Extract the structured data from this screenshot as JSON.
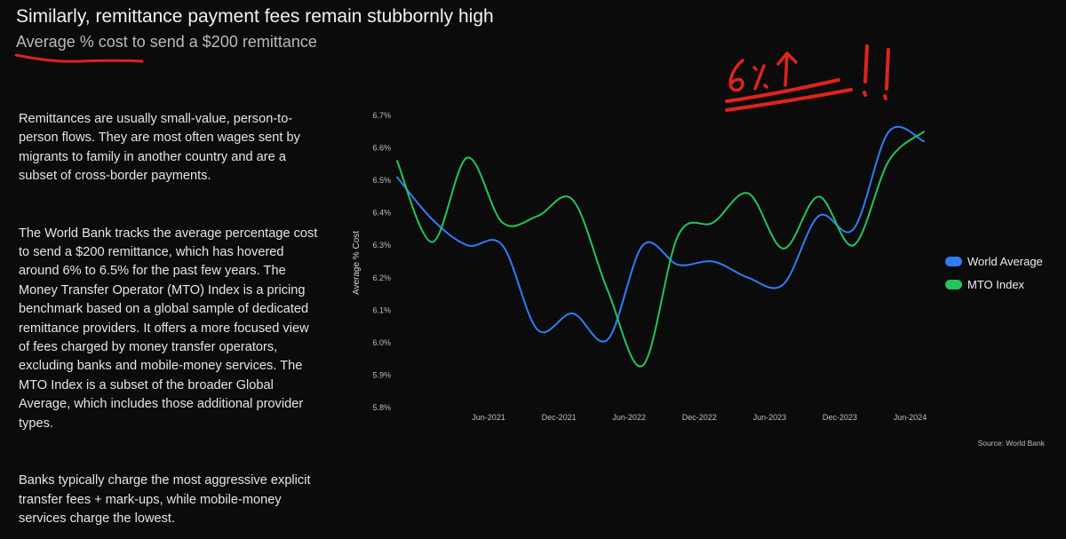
{
  "header": {
    "title": "Similarly, remittance payment fees remain stubbornly high",
    "subtitle": "Average % cost to send a $200 remittance"
  },
  "body": {
    "paragraphs": [
      "Remittances are usually small-value, person-to-person flows. They are most often wages sent by migrants to family in another country and are a subset of cross-border payments.",
      "The World Bank tracks the average percentage cost to send a $200 remittance, which has hovered around 6% to 6.5% for the past few years. The Money Transfer Operator (MTO) Index is a pricing benchmark based on a global sample of dedicated remittance providers. It offers a more focused view of fees charged by money transfer operators, excluding banks and mobile-money services. The MTO Index is a subset of the broader Global Average, which includes those additional provider types.",
      "Banks typically charge the most aggressive explicit transfer fees + mark-ups, while mobile-money services charge the lowest."
    ]
  },
  "annotation": {
    "handwritten_text": "6%↑ !!"
  },
  "source": "Source: World Bank",
  "colors": {
    "world_average": "#2f7df6",
    "mto_index": "#22c55e",
    "annotation": "#e0231c"
  },
  "chart_data": {
    "type": "line",
    "title": "",
    "xlabel": "",
    "ylabel": "Average % Cost",
    "ylim": [
      5.8,
      6.7
    ],
    "yticks": [
      "6.7%",
      "6.6%",
      "6.5%",
      "6.4%",
      "6.3%",
      "6.2%",
      "6.1%",
      "6.0%",
      "5.9%",
      "5.8%"
    ],
    "xtick_labels": [
      "Jun-2021",
      "Dec-2021",
      "Jun-2022",
      "Dec-2022",
      "Jun-2023",
      "Dec-2023",
      "Jun-2024"
    ],
    "x": [
      "Dec-2020",
      "Mar-2021",
      "Jun-2021",
      "Sep-2021",
      "Dec-2021",
      "Mar-2022",
      "Jun-2022",
      "Sep-2022",
      "Dec-2022",
      "Mar-2023",
      "Jun-2023",
      "Sep-2023",
      "Dec-2023",
      "Mar-2024",
      "Jun-2024",
      "Sep-2024"
    ],
    "series": [
      {
        "name": "World Average",
        "values": [
          6.51,
          6.38,
          6.3,
          6.3,
          6.04,
          6.09,
          6.01,
          6.3,
          6.24,
          6.25,
          6.2,
          6.18,
          6.39,
          6.35,
          6.65,
          6.62
        ]
      },
      {
        "name": "MTO Index",
        "values": [
          6.56,
          6.31,
          6.57,
          6.37,
          6.39,
          6.44,
          6.16,
          5.93,
          6.33,
          6.37,
          6.46,
          6.29,
          6.45,
          6.3,
          6.56,
          6.65
        ]
      }
    ],
    "grid": false,
    "legend": "right"
  }
}
